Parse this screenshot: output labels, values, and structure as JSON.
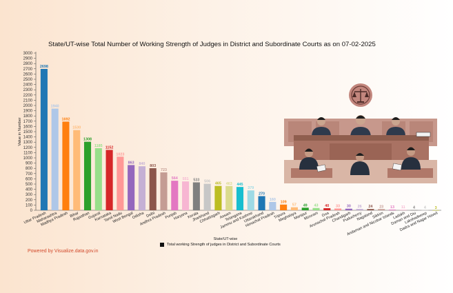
{
  "chart_title": "State/UT-wise Total Number of Working Strength of Judges in District and Subordinate Courts as on 07-02-2025",
  "powered_by": "Powered by Visualize.data.gov.in",
  "legend_label": "Total working Strength of judges in District and Subordinate Courts",
  "chart_data": {
    "type": "bar",
    "title": "State/UT-wise Total Number of Working Strength of Judges in District and Subordinate Courts as on 07-02-2025",
    "xlabel": "State/UT-wise",
    "ylabel": "Value in Number",
    "ylim": [
      0,
      3000
    ],
    "yticks": [
      0,
      100,
      200,
      300,
      400,
      500,
      600,
      700,
      800,
      900,
      1000,
      1100,
      1200,
      1300,
      1400,
      1500,
      1600,
      1700,
      1800,
      1900,
      2000,
      2100,
      2200,
      2300,
      2400,
      2500,
      2600,
      2700,
      2800,
      2900,
      3000
    ],
    "grid": false,
    "legend_position": "bottom",
    "categories": [
      "Uttar Pradesh",
      "Maharashtra",
      "Madhya Pradesh",
      "Bihar",
      "Rajasthan",
      "Gujarat",
      "Karnataka",
      "Tamil Nadu",
      "West Bengal",
      "Odisha",
      "Delhi",
      "Andhra Pradesh",
      "Punjab",
      "Haryana",
      "Kerala",
      "Jharkhand",
      "Chhattisgarh",
      "Assam",
      "Telangana",
      "Jammu and Kashmir",
      "Uttarakhand",
      "Himachal Pradesh",
      "Tripura",
      "Meghalaya",
      "Manipur",
      "Mizoram",
      "Goa",
      "Arunachal Pradesh",
      "Chandigarh",
      "Puducherry",
      "Nagaland",
      "Sikkim",
      "Andaman and Nicobar Islands",
      "Ladakh",
      "Daman and Diu",
      "Lakshadweep",
      "Dadra and Nagar Haveli"
    ],
    "values": [
      2698,
      1940,
      1692,
      1530,
      1308,
      1185,
      1152,
      1023,
      863,
      840,
      803,
      723,
      564,
      551,
      533,
      506,
      465,
      463,
      445,
      379,
      270,
      160,
      109,
      57,
      49,
      43,
      40,
      33,
      30,
      26,
      24,
      23,
      13,
      11,
      4,
      4,
      3
    ],
    "colors": [
      "#1f77b4",
      "#aec7e8",
      "#ff7f0e",
      "#ffbb78",
      "#2ca02c",
      "#98df8a",
      "#d62728",
      "#ff9896",
      "#9467bd",
      "#c5b0d5",
      "#8c564b",
      "#c49c94",
      "#e377c2",
      "#f7b6d2",
      "#7f7f7f",
      "#c7c7c7",
      "#bcbd22",
      "#dbdb8d",
      "#17becf",
      "#9edae5",
      "#1f77b4",
      "#aec7e8",
      "#ff7f0e",
      "#ffbb78",
      "#2ca02c",
      "#98df8a",
      "#d62728",
      "#ff9896",
      "#9467bd",
      "#c5b0d5",
      "#8c564b",
      "#c49c94",
      "#e377c2",
      "#f7b6d2",
      "#7f7f7f",
      "#c7c7c7",
      "#bcbd22"
    ]
  }
}
